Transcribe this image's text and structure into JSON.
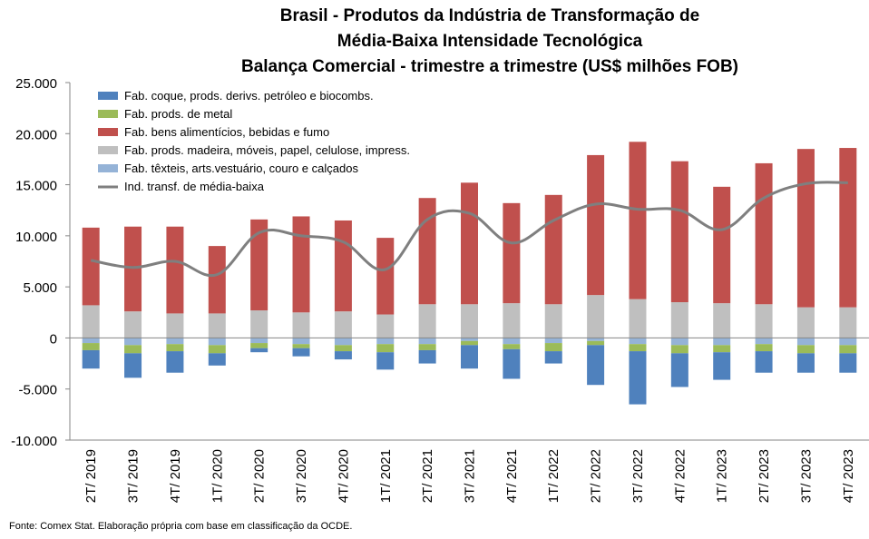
{
  "chart_data": {
    "type": "bar",
    "stacked": true,
    "title_lines": [
      "Brasil - Produtos da Indústria de Transformação de",
      "Média-Baixa Intensidade Tecnológica",
      "Balança Comercial - trimestre a trimestre (US$ milhões FOB)"
    ],
    "categories": [
      "2T/ 2019",
      "3T/ 2019",
      "4T/ 2019",
      "1T/ 2020",
      "2T/ 2020",
      "3T/ 2020",
      "4T/ 2020",
      "1T/ 2021",
      "2T/ 2021",
      "3T/ 2021",
      "4T/ 2021",
      "1T/ 2022",
      "2T/ 2022",
      "3T/ 2022",
      "4T/ 2022",
      "1T/ 2023",
      "2T/ 2023",
      "3T/ 2023",
      "4T/ 2023"
    ],
    "y_ticks": [
      "25.000",
      "20.000",
      "15.000",
      "10.000",
      "5.000",
      "0",
      "-5.000",
      "-10.000"
    ],
    "ylim": [
      -10000,
      25000
    ],
    "series": [
      {
        "name": "Fab. coque, prods. derivs. petróleo e biocombs.",
        "color": "#4f81bd",
        "values": [
          -1800,
          -2400,
          -2100,
          -1200,
          -400,
          -800,
          -800,
          -1700,
          -1300,
          -2300,
          -2900,
          -1200,
          -3900,
          -5200,
          -3300,
          -2700,
          -2100,
          -1900,
          -1900
        ]
      },
      {
        "name": "Fab. prods. de metal",
        "color": "#9bbb59",
        "values": [
          -700,
          -800,
          -700,
          -800,
          -500,
          -400,
          -600,
          -800,
          -600,
          -400,
          -500,
          -800,
          -400,
          -700,
          -800,
          -700,
          -700,
          -800,
          -800
        ]
      },
      {
        "name": "Fab. bens alimentícios, bebidas e fumo",
        "color": "#c0504d",
        "values": [
          7600,
          8300,
          8500,
          6600,
          8900,
          9400,
          8900,
          7500,
          10400,
          11900,
          9800,
          10700,
          13700,
          15400,
          13800,
          11400,
          13800,
          15500,
          15600
        ]
      },
      {
        "name": "Fab. prods. madeira, móveis, papel, celulose, impress.",
        "color": "#bfbfbf",
        "values": [
          3200,
          2600,
          2400,
          2400,
          2700,
          2500,
          2600,
          2300,
          3300,
          3300,
          3400,
          3300,
          4200,
          3800,
          3500,
          3400,
          3300,
          3000,
          3000
        ]
      },
      {
        "name": "Fab. têxteis, arts.vestuário, couro e calçados",
        "color": "#95b3d7",
        "values": [
          -500,
          -700,
          -600,
          -700,
          -500,
          -600,
          -700,
          -600,
          -600,
          -300,
          -600,
          -500,
          -300,
          -600,
          -700,
          -700,
          -600,
          -700,
          -700
        ]
      }
    ],
    "line": {
      "name": "Ind. transf. de média-baixa",
      "color": "#7f7f7f",
      "values": [
        7600,
        6900,
        7500,
        6200,
        10300,
        10000,
        9400,
        6700,
        11600,
        12200,
        9300,
        11500,
        13100,
        12600,
        12500,
        10600,
        13700,
        15100,
        15200
      ]
    },
    "legend_position": "top-left",
    "grid": false
  },
  "source": "Fonte: Comex Stat. Elaboração própria com base em classificação da OCDE."
}
